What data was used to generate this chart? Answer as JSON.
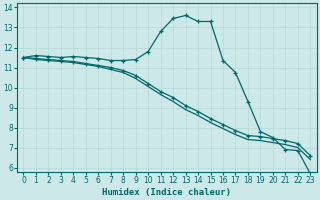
{
  "xlabel": "Humidex (Indice chaleur)",
  "bg_color": "#cce8e8",
  "grid_color_major": "#b0d0d0",
  "grid_color_minor": "#d8ecec",
  "line_color": "#006868",
  "xlim": [
    -0.5,
    23.5
  ],
  "ylim": [
    5.8,
    14.2
  ],
  "xticks": [
    0,
    1,
    2,
    3,
    4,
    5,
    6,
    7,
    8,
    9,
    10,
    11,
    12,
    13,
    14,
    15,
    16,
    17,
    18,
    19,
    20,
    21,
    22,
    23
  ],
  "yticks": [
    6,
    7,
    8,
    9,
    10,
    11,
    12,
    13,
    14
  ],
  "line1_x": [
    0,
    1,
    2,
    3,
    4,
    5,
    6,
    7,
    8,
    9,
    10,
    11,
    12,
    13,
    14,
    15,
    16,
    17,
    18,
    19,
    20,
    21,
    22,
    23
  ],
  "line1_y": [
    11.5,
    11.6,
    11.55,
    11.5,
    11.55,
    11.5,
    11.45,
    11.35,
    11.35,
    11.4,
    11.8,
    12.8,
    13.45,
    13.6,
    13.3,
    13.3,
    11.35,
    10.75,
    9.3,
    7.8,
    7.5,
    6.9,
    6.85,
    5.7
  ],
  "line2_x": [
    0,
    1,
    2,
    3,
    4,
    5,
    6,
    7,
    8,
    9,
    10,
    11,
    12,
    13,
    14,
    15,
    16,
    17,
    18,
    19,
    20,
    21,
    22,
    23
  ],
  "line2_y": [
    11.5,
    11.45,
    11.4,
    11.35,
    11.3,
    11.2,
    11.1,
    11.0,
    10.85,
    10.6,
    10.2,
    9.8,
    9.5,
    9.1,
    8.8,
    8.45,
    8.15,
    7.85,
    7.6,
    7.55,
    7.45,
    7.35,
    7.2,
    6.6
  ],
  "line3_x": [
    0,
    1,
    2,
    3,
    4,
    5,
    6,
    7,
    8,
    9,
    10,
    11,
    12,
    13,
    14,
    15,
    16,
    17,
    18,
    19,
    20,
    21,
    22,
    23
  ],
  "line3_y": [
    11.5,
    11.4,
    11.35,
    11.3,
    11.25,
    11.15,
    11.05,
    10.9,
    10.75,
    10.45,
    10.05,
    9.65,
    9.3,
    8.9,
    8.6,
    8.25,
    7.95,
    7.65,
    7.4,
    7.35,
    7.25,
    7.15,
    7.0,
    6.4
  ]
}
